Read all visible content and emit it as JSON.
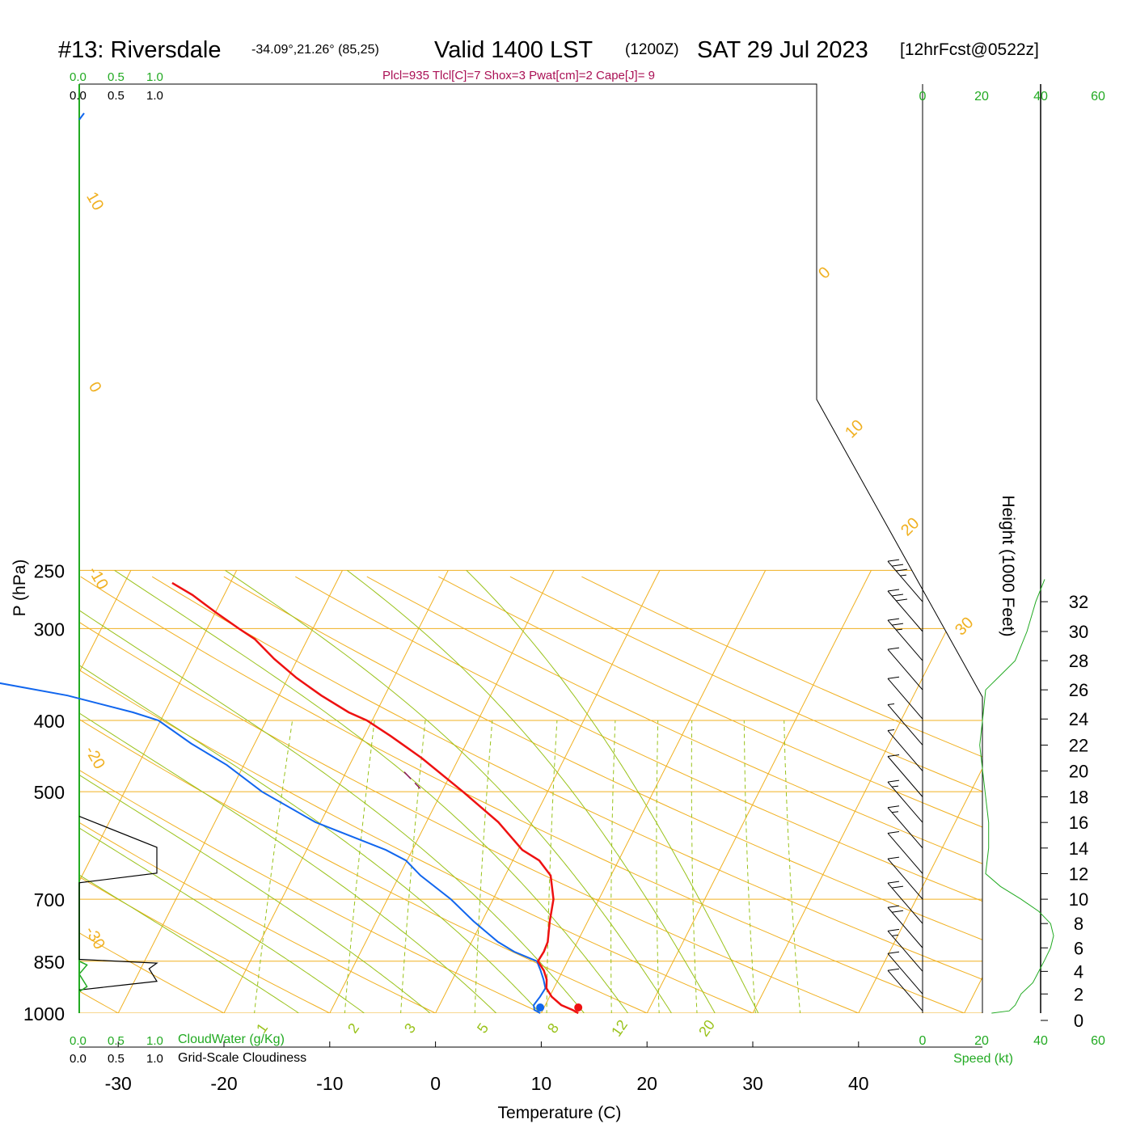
{
  "header": {
    "station": "#13: Riversdale",
    "coords": "-34.09°,21.26° (85,25)",
    "valid": "Valid 1400 LST",
    "utc": "(1200Z)",
    "date": "SAT 29 Jul 2023",
    "forecast": "[12hrFcst@0522z]",
    "indices": "Plcl=935 Tlcl[C]=7 Shox=3 Pwat[cm]=2 Cape[J]= 9"
  },
  "colors": {
    "temperature": "#ee1111",
    "dewpoint": "#1166ee",
    "isotherm": "#f0b020",
    "dry_adiabat": "#f0b020",
    "moist_adiabat": "#99c21a",
    "mixing_ratio": "#99c21a",
    "parcel": "#8b1a5a",
    "indices_text": "#aa1155",
    "cloud_water": "#22aa22",
    "speed_axis": "#22aa22"
  },
  "chart_data": {
    "type": "skew-t",
    "xlabel": "Temperature (C)",
    "ylabel": "P (hPa)",
    "ylabel_right": "Height (1000 Feet)",
    "x_ticks": [
      -30,
      -20,
      -10,
      0,
      10,
      20,
      30,
      40
    ],
    "p_ticks": [
      250,
      300,
      400,
      500,
      700,
      850,
      1000
    ],
    "p_range": [
      250,
      1000
    ],
    "height_ticks": [
      0,
      2,
      4,
      6,
      8,
      10,
      12,
      14,
      16,
      18,
      20,
      22,
      24,
      26,
      28,
      30,
      32
    ],
    "speed_ticks": [
      0,
      20,
      40,
      60
    ],
    "speed_label": "Speed (kt)",
    "cloud_ticks": [
      "0.0",
      "0.5",
      "1.0"
    ],
    "cloud_water_label": "CloudWater (g/Kg)",
    "cloudiness_label": "Grid-Scale Cloudiness",
    "isotherm_labels": [
      "10",
      "0",
      "-10",
      "-20",
      "-30",
      "0",
      "10",
      "20",
      "30"
    ],
    "mixing_ratio_labels": [
      "1",
      "2",
      "3",
      "5",
      "8",
      "12",
      "20"
    ],
    "temperature": [
      {
        "p": 1000,
        "t": 13.5
      },
      {
        "p": 990,
        "t": 12.8
      },
      {
        "p": 975,
        "t": 11.5
      },
      {
        "p": 950,
        "t": 10.2
      },
      {
        "p": 925,
        "t": 9.3
      },
      {
        "p": 900,
        "t": 8.9
      },
      {
        "p": 875,
        "t": 8.2
      },
      {
        "p": 850,
        "t": 7.2
      },
      {
        "p": 825,
        "t": 7.3
      },
      {
        "p": 800,
        "t": 7.2
      },
      {
        "p": 750,
        "t": 6.4
      },
      {
        "p": 700,
        "t": 5.7
      },
      {
        "p": 650,
        "t": 4.3
      },
      {
        "p": 620,
        "t": 2.5
      },
      {
        "p": 600,
        "t": 0.4
      },
      {
        "p": 550,
        "t": -3.2
      },
      {
        "p": 500,
        "t": -8.0
      },
      {
        "p": 450,
        "t": -13.5
      },
      {
        "p": 420,
        "t": -17.5
      },
      {
        "p": 400,
        "t": -20.5
      },
      {
        "p": 390,
        "t": -22.6
      },
      {
        "p": 370,
        "t": -26.0
      },
      {
        "p": 350,
        "t": -29.2
      },
      {
        "p": 330,
        "t": -32.2
      },
      {
        "p": 310,
        "t": -35.0
      },
      {
        "p": 300,
        "t": -37.0
      },
      {
        "p": 285,
        "t": -40.0
      },
      {
        "p": 270,
        "t": -43.0
      },
      {
        "p": 260,
        "t": -45.5
      }
    ],
    "dewpoint": [
      {
        "p": 1000,
        "t": 9.9
      },
      {
        "p": 990,
        "t": 9.2
      },
      {
        "p": 975,
        "t": 8.9
      },
      {
        "p": 950,
        "t": 9.1
      },
      {
        "p": 925,
        "t": 9.2
      },
      {
        "p": 900,
        "t": 8.6
      },
      {
        "p": 875,
        "t": 7.9
      },
      {
        "p": 850,
        "t": 7.1
      },
      {
        "p": 825,
        "t": 4.5
      },
      {
        "p": 800,
        "t": 2.5
      },
      {
        "p": 750,
        "t": -0.8
      },
      {
        "p": 700,
        "t": -4.0
      },
      {
        "p": 650,
        "t": -8.0
      },
      {
        "p": 620,
        "t": -10.1
      },
      {
        "p": 600,
        "t": -12.5
      },
      {
        "p": 550,
        "t": -20.5
      },
      {
        "p": 500,
        "t": -27.0
      },
      {
        "p": 460,
        "t": -31.6
      },
      {
        "p": 430,
        "t": -36.0
      },
      {
        "p": 400,
        "t": -40.2
      },
      {
        "p": 390,
        "t": -43.0
      },
      {
        "p": 370,
        "t": -50.0
      },
      {
        "p": 350,
        "t": -60.0
      },
      {
        "p": 335,
        "t": -70.0
      },
      {
        "p": 325,
        "t": -78.0
      }
    ],
    "parcel_segment": [
      {
        "p": 470,
        "t": -14.5
      },
      {
        "p": 495,
        "t": -12.2
      }
    ],
    "surface_markers": [
      {
        "name": "temperature",
        "p": 1000,
        "t": 13.5
      },
      {
        "name": "dewpoint",
        "p": 1000,
        "t": 9.9
      }
    ],
    "height_kft_vs_p": [
      {
        "p": 1000,
        "h": 0.3
      },
      {
        "p": 850,
        "h": 4.9
      },
      {
        "p": 700,
        "h": 10.0
      },
      {
        "p": 500,
        "h": 18.4
      },
      {
        "p": 400,
        "h": 23.9
      },
      {
        "p": 300,
        "h": 30.2
      },
      {
        "p": 250,
        "h": 34.1
      }
    ],
    "wind_speed_profile_kt": [
      {
        "h": 0.3,
        "v": 2
      },
      {
        "h": 0.5,
        "v": 8
      },
      {
        "h": 1,
        "v": 10
      },
      {
        "h": 2,
        "v": 12
      },
      {
        "h": 3,
        "v": 16
      },
      {
        "h": 4,
        "v": 18
      },
      {
        "h": 5,
        "v": 20
      },
      {
        "h": 6,
        "v": 22
      },
      {
        "h": 7,
        "v": 23
      },
      {
        "h": 8,
        "v": 22
      },
      {
        "h": 9,
        "v": 18
      },
      {
        "h": 10,
        "v": 12
      },
      {
        "h": 11,
        "v": 5
      },
      {
        "h": 12,
        "v": 0
      },
      {
        "h": 14,
        "v": 1
      },
      {
        "h": 16,
        "v": 1
      },
      {
        "h": 18,
        "v": 0
      },
      {
        "h": 20,
        "v": -1
      },
      {
        "h": 22,
        "v": -2
      },
      {
        "h": 24,
        "v": -1
      },
      {
        "h": 26,
        "v": 0
      },
      {
        "h": 27,
        "v": 5
      },
      {
        "h": 28,
        "v": 10
      },
      {
        "h": 30,
        "v": 14
      },
      {
        "h": 32,
        "v": 17
      },
      {
        "h": 33.5,
        "v": 20
      }
    ],
    "wind_barbs_kt": [
      {
        "h": 0.5,
        "spd": 10
      },
      {
        "h": 2,
        "spd": 12
      },
      {
        "h": 4,
        "spd": 18
      },
      {
        "h": 6,
        "spd": 22
      },
      {
        "h": 8,
        "spd": 22
      },
      {
        "h": 10,
        "spd": 12
      },
      {
        "h": 12,
        "spd": 10
      },
      {
        "h": 14,
        "spd": 15
      },
      {
        "h": 16,
        "spd": 15
      },
      {
        "h": 18,
        "spd": 10
      },
      {
        "h": 20,
        "spd": 5
      },
      {
        "h": 22,
        "spd": 5
      },
      {
        "h": 24,
        "spd": 10
      },
      {
        "h": 26,
        "spd": 10
      },
      {
        "h": 28,
        "spd": 25
      },
      {
        "h": 30,
        "spd": 30
      },
      {
        "h": 32,
        "spd": 35
      }
    ],
    "cloudiness_profile": [
      {
        "p": 540,
        "c": 0.0
      },
      {
        "p": 595,
        "c": 1.0
      },
      {
        "p": 645,
        "c": 1.0
      },
      {
        "p": 665,
        "c": 0.0
      },
      {
        "p": 845,
        "c": 0.0
      },
      {
        "p": 855,
        "c": 1.0
      },
      {
        "p": 870,
        "c": 0.9
      },
      {
        "p": 905,
        "c": 1.0
      },
      {
        "p": 915,
        "c": 0.6
      },
      {
        "p": 930,
        "c": 0.0
      }
    ],
    "cloud_water_profile": [
      {
        "p": 850,
        "c": 0.0
      },
      {
        "p": 860,
        "c": 0.1
      },
      {
        "p": 885,
        "c": 0.0
      },
      {
        "p": 920,
        "c": 0.1
      },
      {
        "p": 935,
        "c": 0.0
      }
    ]
  }
}
